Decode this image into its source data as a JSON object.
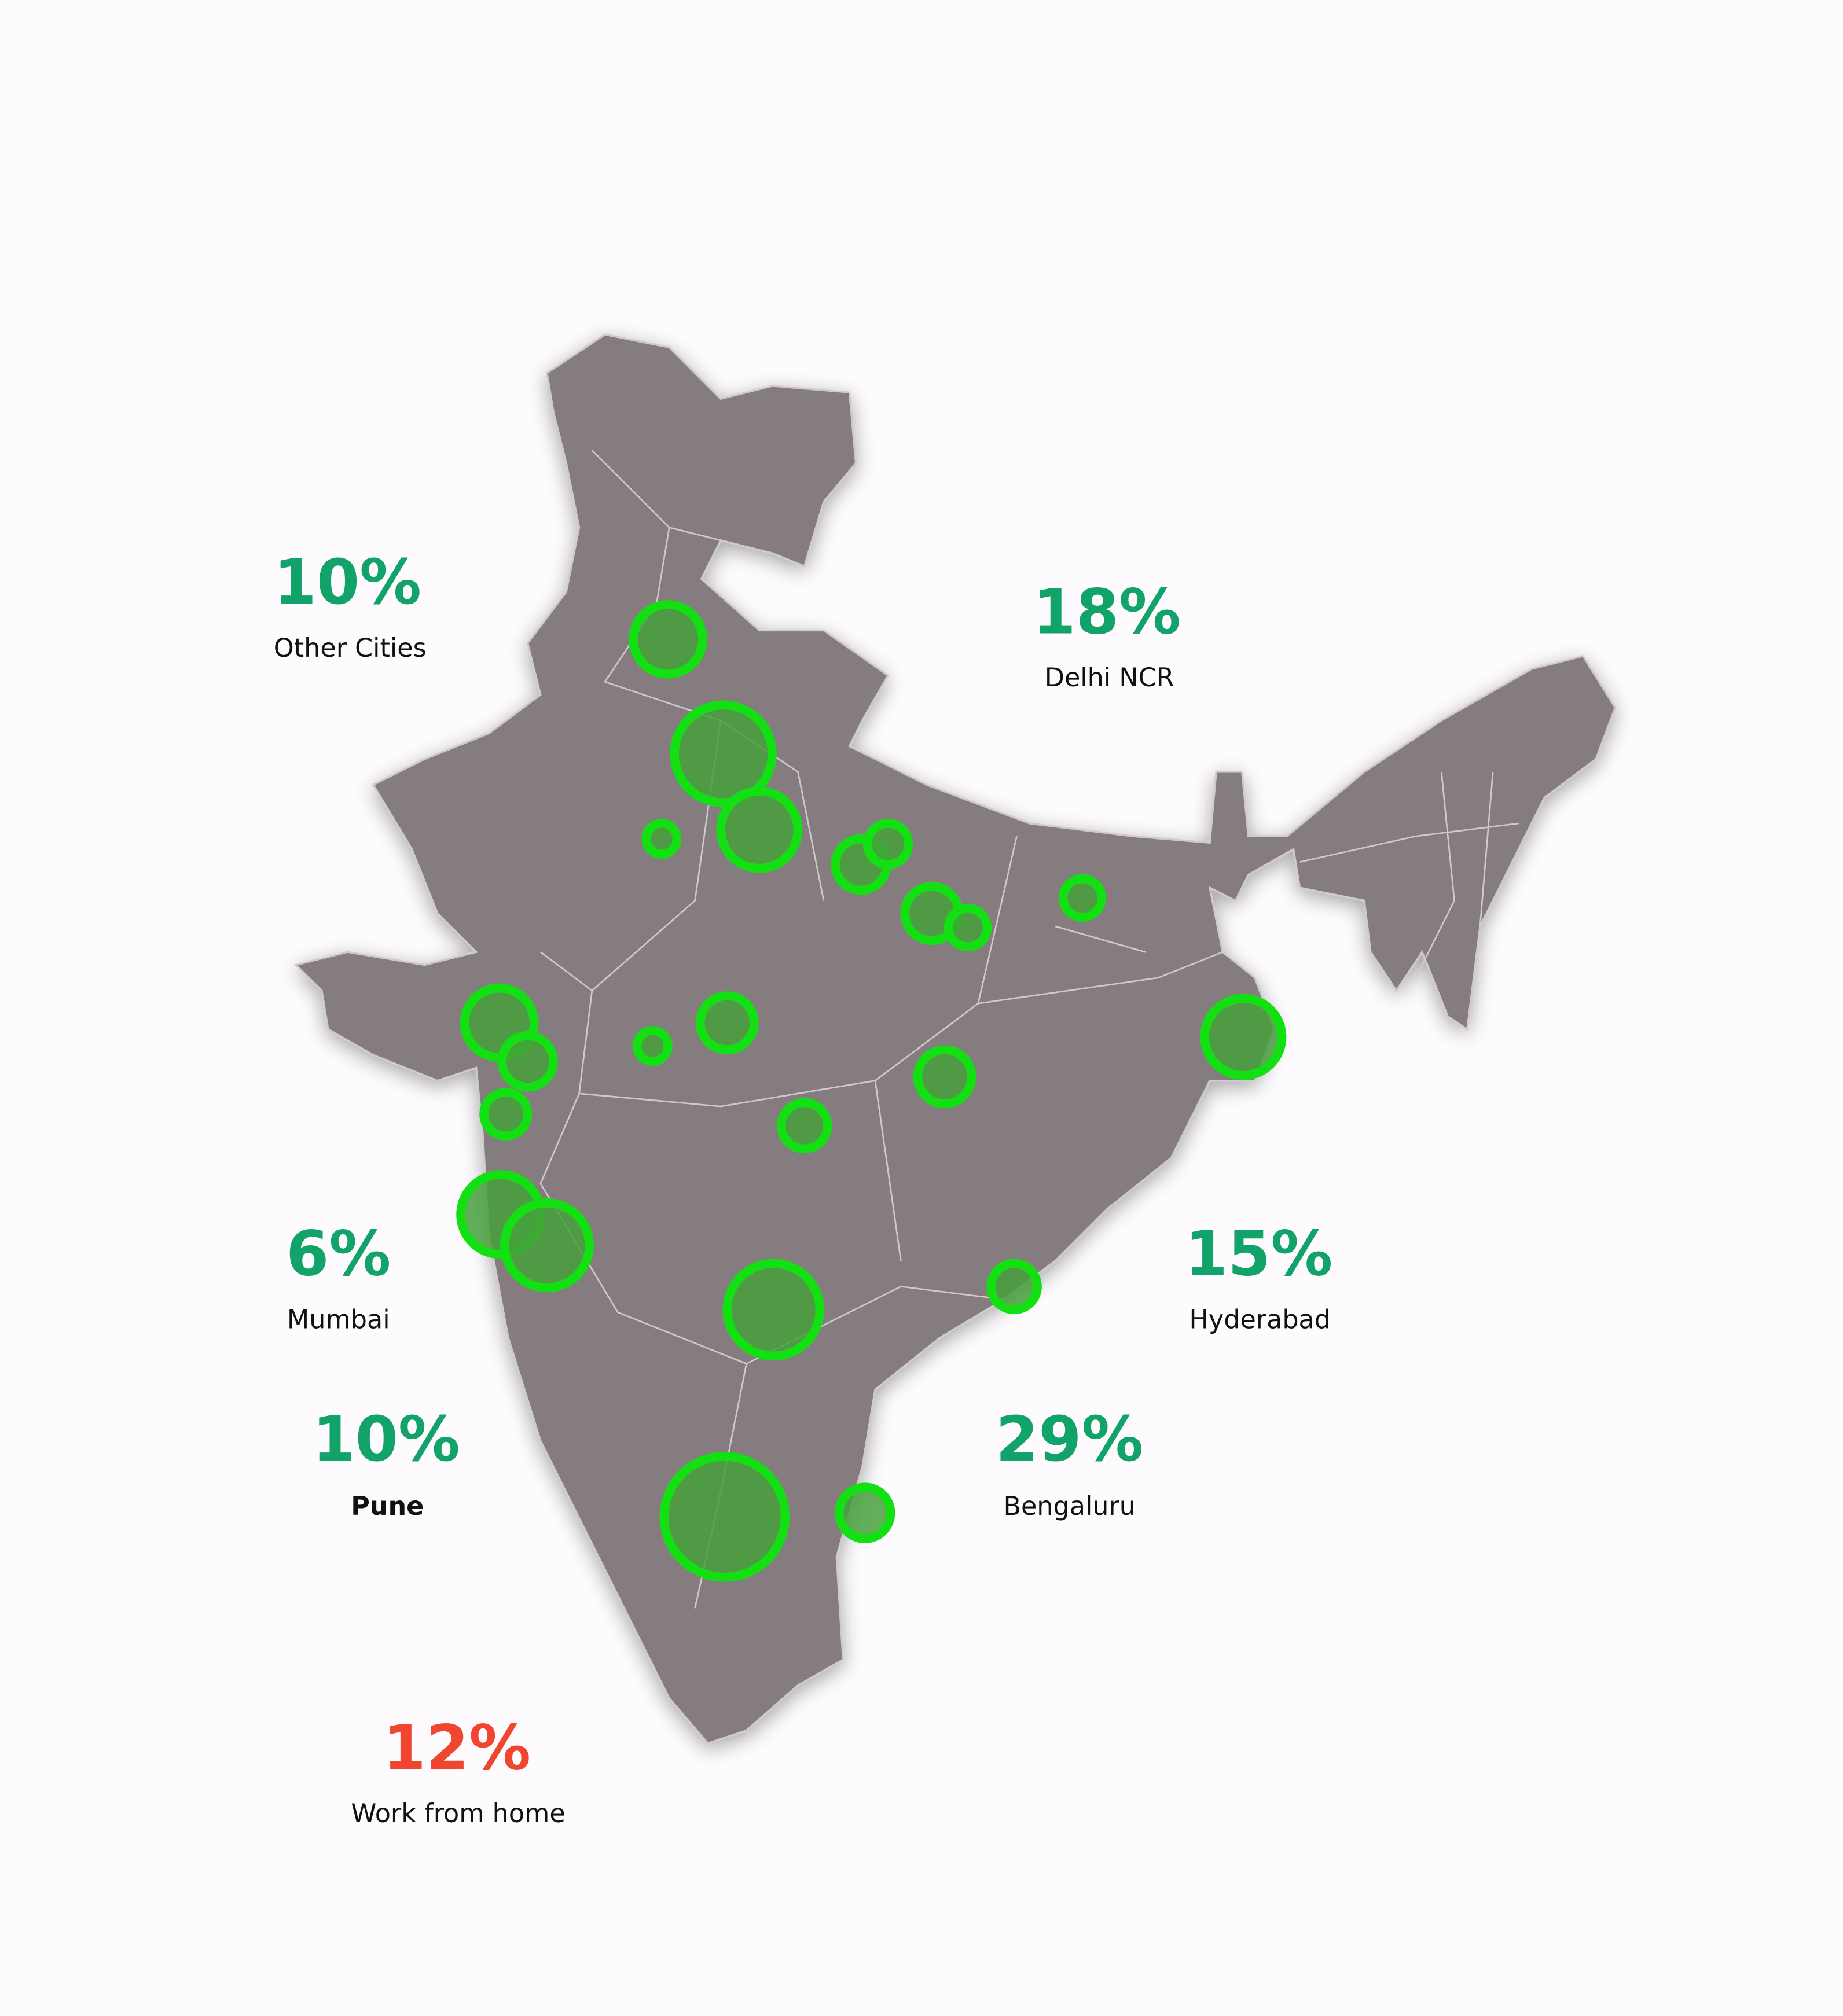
{
  "stats": [
    {
      "value": "10%",
      "label": "Other Cities"
    },
    {
      "value": "18%",
      "label": "Delhi NCR"
    },
    {
      "value": "6%",
      "label": "Mumbai"
    },
    {
      "value": "15%",
      "label": "Hyderabad"
    },
    {
      "value": "10%",
      "label": "Pune"
    },
    {
      "value": "29%",
      "label": "Bengaluru"
    },
    {
      "value": "12%",
      "label": "Work from home"
    }
  ]
}
